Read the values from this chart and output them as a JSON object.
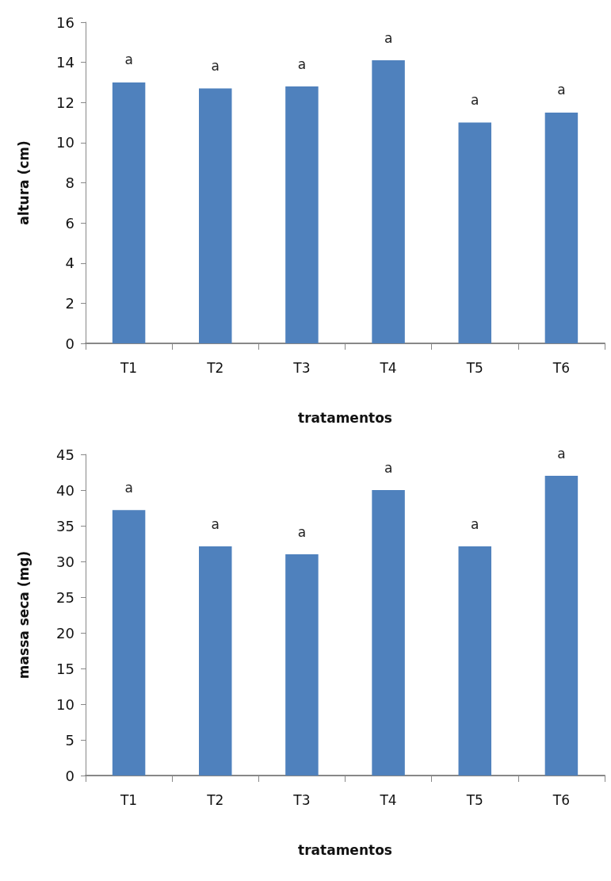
{
  "chart_data": [
    {
      "type": "bar",
      "categories": [
        "T1",
        "T2",
        "T3",
        "T4",
        "T5",
        "T6"
      ],
      "values": [
        13.0,
        12.7,
        12.8,
        14.1,
        11.0,
        11.5
      ],
      "color": "#4f81bd",
      "value_labels": [
        "a",
        "a",
        "a",
        "a",
        "a",
        "a"
      ],
      "ylim": [
        0,
        16
      ],
      "yticks": [
        0,
        2,
        4,
        6,
        8,
        10,
        12,
        14,
        16
      ],
      "xlabel": "tratamentos",
      "ylabel": "altura (cm)",
      "grid": false
    },
    {
      "type": "bar",
      "categories": [
        "T1",
        "T2",
        "T3",
        "T4",
        "T5",
        "T6"
      ],
      "values": [
        37.2,
        32.1,
        31.0,
        40.0,
        32.1,
        42.0
      ],
      "color": "#4f81bd",
      "value_labels": [
        "a",
        "a",
        "a",
        "a",
        "a",
        "a"
      ],
      "ylim": [
        0,
        45
      ],
      "yticks": [
        0,
        5,
        10,
        15,
        20,
        25,
        30,
        35,
        40,
        45
      ],
      "xlabel": "tratamentos",
      "ylabel": "massa seca (mg)",
      "grid": false
    }
  ]
}
